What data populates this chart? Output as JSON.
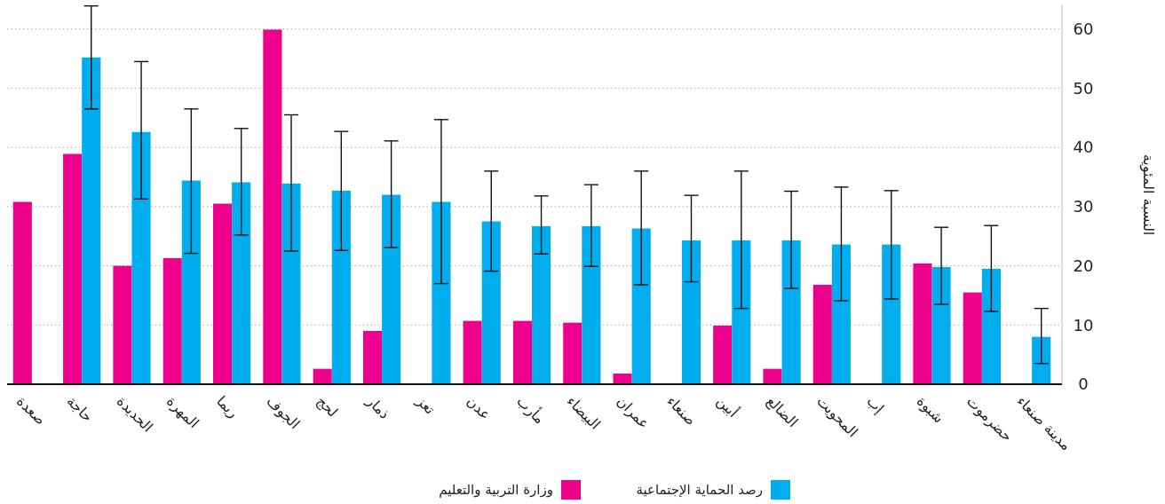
{
  "chart_data": {
    "type": "bar",
    "ylabel": "النسبة المئوية",
    "categories": [
      "صعدة",
      "حاجة",
      "الحديدة",
      "المهرة",
      "ريما",
      "الجوف",
      "لحج",
      "ذمار",
      "تعز",
      "عدن",
      "مأرب",
      "البيضاء",
      "عمران",
      "صنعاء",
      "أبين",
      "الضالع",
      "المحويت",
      "إب",
      "شبوة",
      "حضرموت",
      "مدينة صنعاء"
    ],
    "series": [
      {
        "name": "وزارة التربية والتعليم",
        "color": "#ec008c",
        "values": [
          30.8,
          38.9,
          20.0,
          21.3,
          30.5,
          59.9,
          2.6,
          9.0,
          null,
          10.7,
          10.7,
          10.4,
          1.8,
          null,
          9.9,
          2.6,
          16.8,
          null,
          20.4,
          15.5,
          null
        ]
      },
      {
        "name": "رصد الحماية الإجتماعية",
        "color": "#00aeef",
        "values": [
          null,
          55.2,
          42.6,
          34.4,
          34.1,
          33.9,
          32.7,
          32.0,
          30.8,
          27.5,
          26.7,
          26.7,
          26.3,
          24.3,
          24.3,
          24.3,
          23.6,
          23.6,
          19.8,
          19.5,
          8.0
        ],
        "errors": [
          null,
          [
            46.5,
            63.9
          ],
          [
            31.3,
            54.5
          ],
          [
            22.1,
            46.5
          ],
          [
            25.2,
            43.2
          ],
          [
            22.5,
            45.5
          ],
          [
            22.6,
            42.7
          ],
          [
            23.1,
            41.1
          ],
          [
            17.0,
            44.7
          ],
          [
            19.1,
            36.0
          ],
          [
            22.0,
            31.8
          ],
          [
            19.9,
            33.7
          ],
          [
            16.8,
            36.0
          ],
          [
            17.3,
            31.9
          ],
          [
            12.8,
            36.0
          ],
          [
            16.2,
            32.6
          ],
          [
            14.1,
            33.3
          ],
          [
            14.4,
            32.7
          ],
          [
            13.5,
            26.5
          ],
          [
            12.3,
            26.8
          ],
          [
            3.5,
            12.8
          ]
        ]
      }
    ],
    "ylim": [
      0,
      64
    ],
    "yticks": [
      0,
      10,
      20,
      30,
      40,
      50,
      60
    ],
    "grid": "y",
    "legend": "bottom"
  }
}
